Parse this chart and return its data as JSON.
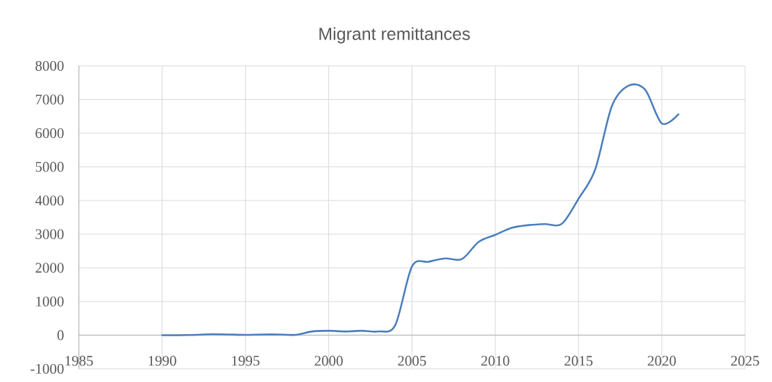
{
  "chart_data": {
    "type": "line",
    "title": "Migrant remittances",
    "x": [
      1990,
      1991,
      1992,
      1993,
      1994,
      1995,
      1996,
      1997,
      1998,
      1999,
      2000,
      2001,
      2002,
      2003,
      2004,
      2005,
      2006,
      2007,
      2008,
      2009,
      2010,
      2011,
      2012,
      2013,
      2014,
      2015,
      2016,
      2017,
      2018,
      2019,
      2020,
      2021
    ],
    "values": [
      0,
      0,
      10,
      30,
      20,
      10,
      20,
      20,
      10,
      110,
      130,
      110,
      130,
      110,
      300,
      2040,
      2180,
      2280,
      2260,
      2770,
      2980,
      3190,
      3270,
      3300,
      3310,
      4050,
      4920,
      6800,
      7410,
      7290,
      6290,
      6560
    ],
    "color": "#4a7ebb",
    "line_style": "solid",
    "xlim": [
      1985,
      2025
    ],
    "xticks": [
      1985,
      1990,
      1995,
      2000,
      2005,
      2010,
      2015,
      2020,
      2025
    ],
    "ylim": [
      -1000,
      8000
    ],
    "yticks": [
      -1000,
      0,
      1000,
      2000,
      3000,
      4000,
      5000,
      6000,
      7000,
      8000
    ],
    "grid": true
  }
}
